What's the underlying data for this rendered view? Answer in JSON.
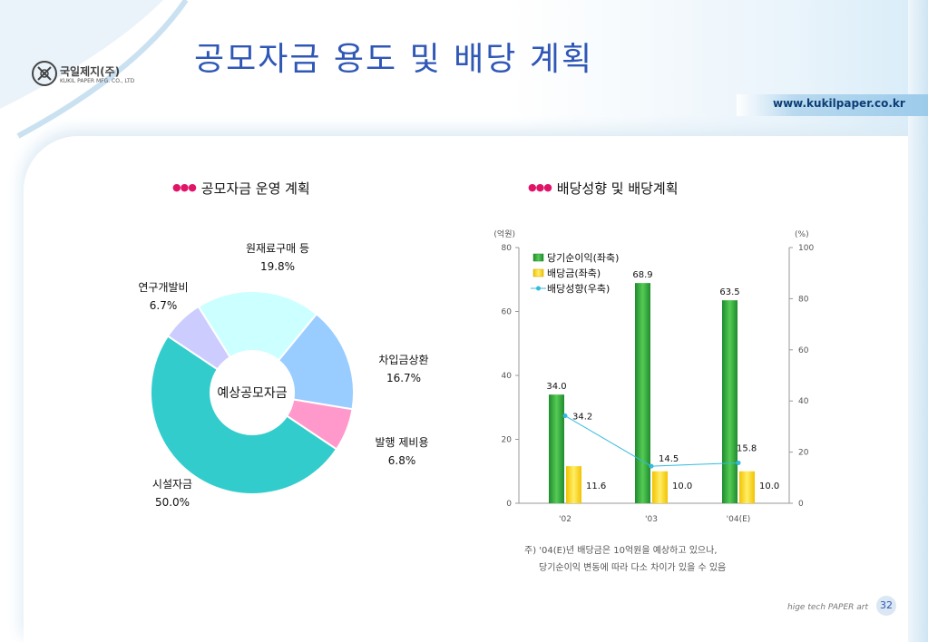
{
  "header": {
    "title": "공모자금 용도 및 배당 계획",
    "logo_name": "국일제지(주)",
    "logo_sub": "KUKIL PAPER MFG. CO., LTD",
    "url": "www.kukilpaper.co.kr"
  },
  "left_section": {
    "title": "공모자금 운영 계획"
  },
  "right_section": {
    "title": "배당성향 및 배당계획"
  },
  "chart_data": [
    {
      "type": "pie",
      "center_label": "예상공모자금",
      "categories": [
        "원재료구매 등",
        "차입금상환",
        "발행 제비용",
        "시설자금",
        "연구개발비"
      ],
      "values": [
        19.8,
        16.7,
        6.8,
        50.0,
        6.7
      ],
      "value_labels": [
        "19.8%",
        "16.7%",
        "6.8%",
        "50.0%",
        "6.7%"
      ],
      "colors": [
        "#ccffff",
        "#99ccff",
        "#ff99cc",
        "#33cccc",
        "#ccccff"
      ]
    },
    {
      "type": "bar",
      "categories": [
        "'02",
        "'03",
        "'04(E)"
      ],
      "left_axis_unit": "(억원)",
      "right_axis_unit": "(%)",
      "left_ylim": [
        0,
        80
      ],
      "left_ticks": [
        "0",
        "20",
        "40",
        "60",
        "80"
      ],
      "right_ylim": [
        0,
        100
      ],
      "right_ticks": [
        "0",
        "20",
        "40",
        "60",
        "80",
        "100"
      ],
      "series": [
        {
          "name": "당기순이익(좌축)",
          "axis": "left",
          "kind": "bar",
          "color": "#33aa33",
          "values": [
            34.0,
            68.9,
            63.5
          ],
          "labels": [
            "34.0",
            "68.9",
            "63.5"
          ]
        },
        {
          "name": "배당금(좌축)",
          "axis": "left",
          "kind": "bar",
          "color": "#ffdd33",
          "values": [
            11.6,
            10.0,
            10.0
          ],
          "labels": [
            "11.6",
            "10.0",
            "10.0"
          ]
        },
        {
          "name": "배당성향(우축)",
          "axis": "right",
          "kind": "line",
          "color": "#33bbdd",
          "values": [
            34.2,
            14.5,
            15.8
          ],
          "labels": [
            "34.2",
            "14.5",
            "15.8"
          ]
        }
      ]
    }
  ],
  "notes": {
    "line1": "주) '04(E)년 배당금은 10억원을 예상하고 있으나,",
    "line2": "당기순이익 변동에 따라 다소 차이가 있을 수 있음"
  },
  "footer": {
    "tagline": "hige tech PAPER art",
    "page": "32"
  }
}
